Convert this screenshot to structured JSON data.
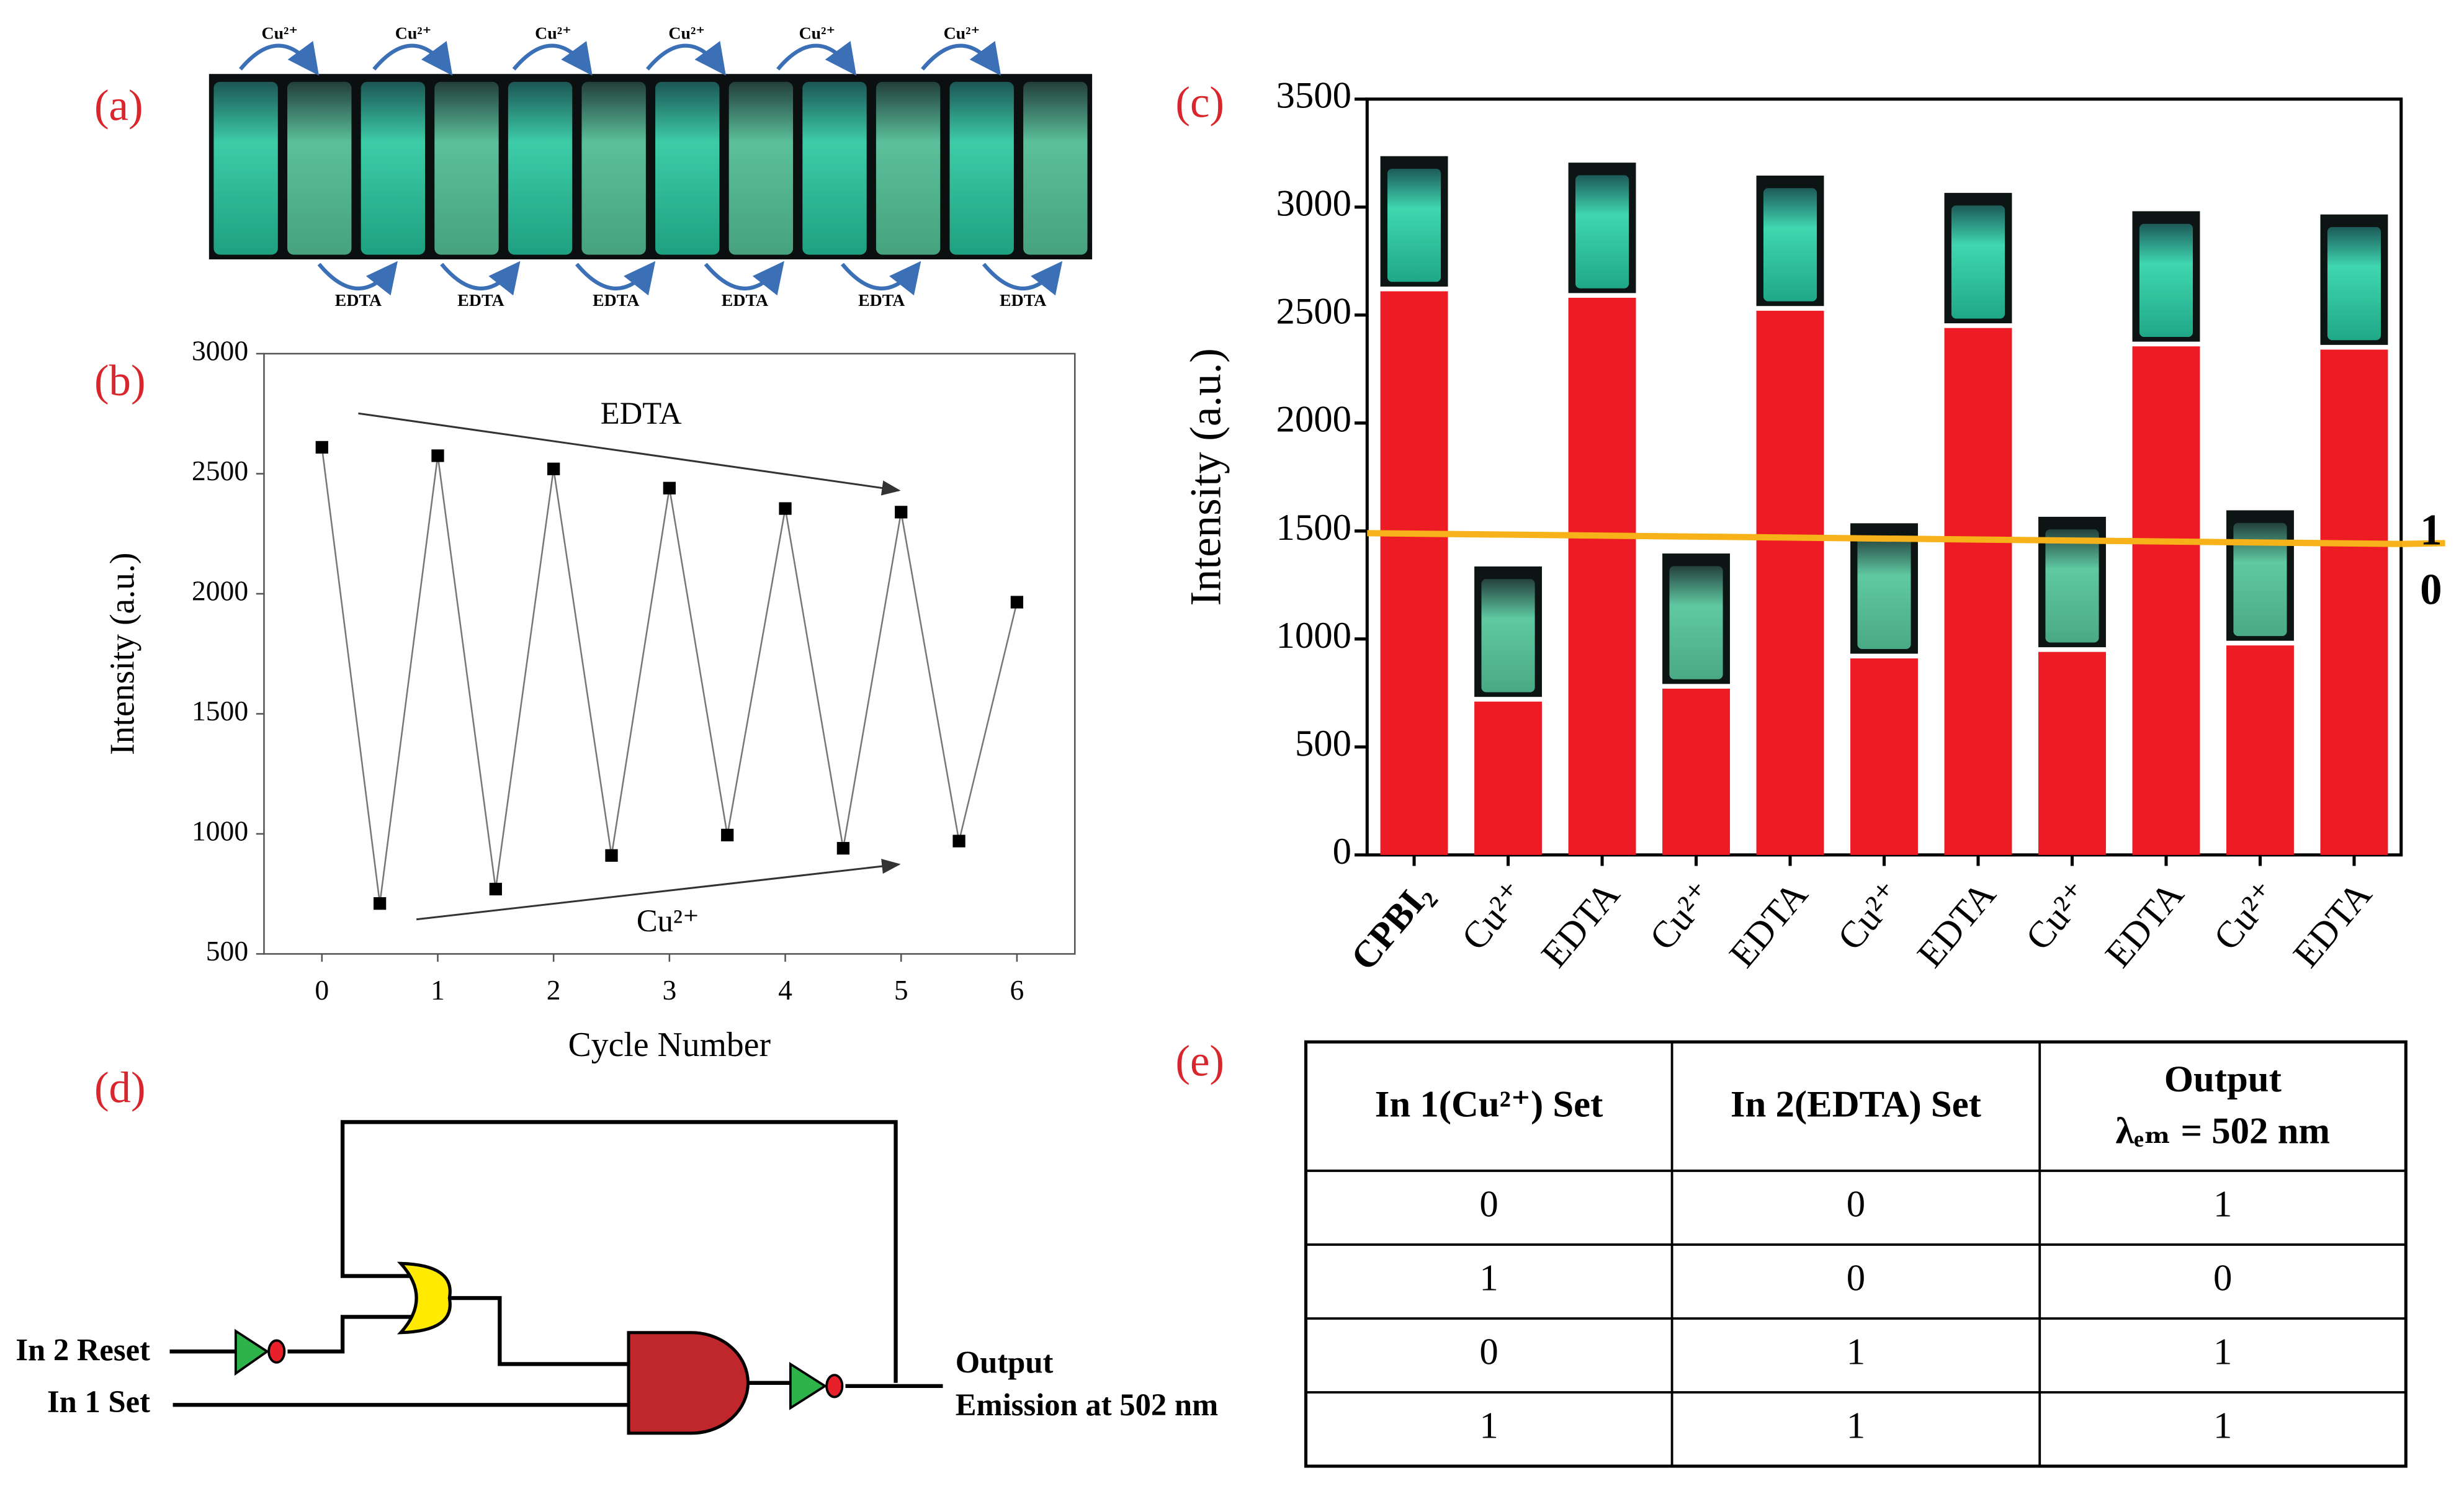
{
  "panel_labels": [
    "(a)",
    "(b)",
    "(c)",
    "(d)",
    "(e)"
  ],
  "photo": {
    "top_labels": [
      "Cu²⁺",
      "Cu²⁺",
      "Cu²⁺",
      "Cu²⁺",
      "Cu²⁺",
      "Cu²⁺"
    ],
    "bottom_labels": [
      "EDTA",
      "EDTA",
      "EDTA",
      "EDTA",
      "EDTA",
      "EDTA"
    ]
  },
  "chart_data": [
    {
      "type": "line",
      "x": [
        0,
        0.5,
        1,
        1.5,
        2,
        2.5,
        3,
        3.5,
        4,
        4.5,
        5,
        5.5,
        6
      ],
      "values": [
        2610,
        710,
        2575,
        770,
        2520,
        910,
        2440,
        995,
        2355,
        940,
        2340,
        970,
        1965
      ],
      "color": "#000000",
      "xlim": [
        -0.5,
        6.5
      ],
      "xticks": [
        0,
        1,
        2,
        3,
        4,
        5,
        6
      ],
      "ylim": [
        500,
        3000
      ],
      "yticks": [
        500,
        1000,
        1500,
        2000,
        2500,
        3000
      ],
      "xlabel": "Cycle Number",
      "ylabel": "Intensity (a.u.)",
      "annotations": [
        "EDTA",
        "Cu²⁺"
      ]
    },
    {
      "type": "bar",
      "categories": [
        "CPBI₂",
        "Cu²⁺",
        "EDTA",
        "Cu²⁺",
        "EDTA",
        "Cu²⁺",
        "EDTA",
        "Cu²⁺",
        "EDTA",
        "Cu²⁺",
        "EDTA"
      ],
      "values": [
        2610,
        710,
        2580,
        770,
        2520,
        910,
        2440,
        940,
        2355,
        970,
        2340
      ],
      "color": "#ed1c24",
      "ylim": [
        0,
        3500
      ],
      "yticks": [
        0,
        500,
        1000,
        1500,
        2000,
        2500,
        3000,
        3500
      ],
      "ylabel": "Intensity (a.u.)",
      "threshold": {
        "values": [
          1490,
          1440
        ],
        "color": "#f7b21a",
        "labels": [
          "1",
          "0"
        ]
      }
    }
  ],
  "diagram": {
    "inputs": [
      "In 2 Reset",
      "In 1 Set"
    ],
    "output": [
      "Output",
      "Emission at 502 nm"
    ]
  },
  "table": {
    "header": [
      "In 1(Cu²⁺) Set",
      "In 2(EDTA) Set",
      [
        "Output",
        "λₑₘ = 502 nm"
      ]
    ],
    "rows": [
      [
        0,
        0,
        1
      ],
      [
        1,
        0,
        0
      ],
      [
        0,
        1,
        1
      ],
      [
        1,
        1,
        1
      ]
    ]
  }
}
